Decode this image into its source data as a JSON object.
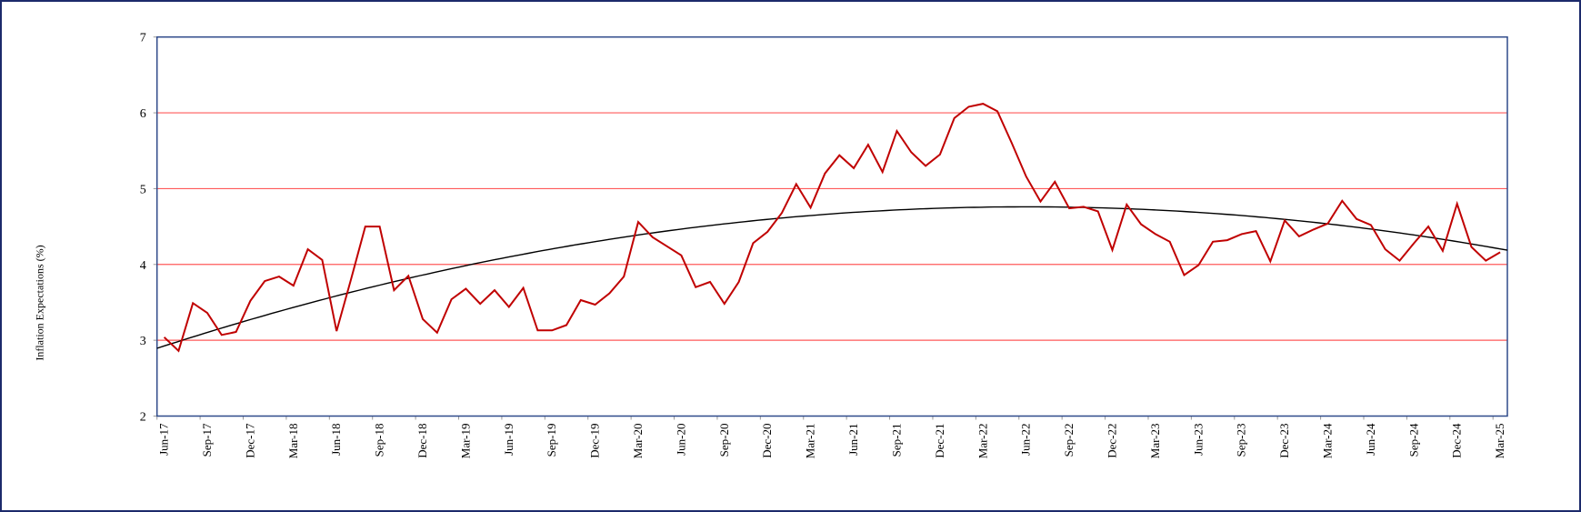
{
  "chart_data": {
    "type": "line",
    "title": "",
    "xlabel": "",
    "ylabel": "Inflation  Expectations (%)",
    "ylim": [
      2,
      7
    ],
    "y_ticks": [
      "2",
      "3",
      "4",
      "5",
      "6",
      "7"
    ],
    "grid": "horizontal",
    "frequency": "monthly",
    "x_tick_labels": [
      "Jun-17",
      "Sep-17",
      "Dec-17",
      "Mar-18",
      "Jun-18",
      "Sep-18",
      "Dec-18",
      "Mar-19",
      "Jun-19",
      "Sep-19",
      "Dec-19",
      "Mar-20",
      "Jun-20",
      "Sep-20",
      "Dec-20",
      "Mar-21",
      "Jun-21",
      "Sep-21",
      "Dec-21",
      "Mar-22",
      "Jun-22",
      "Sep-22",
      "Dec-22",
      "Mar-23",
      "Jun-23",
      "Sep-23",
      "Dec-23",
      "Mar-24",
      "Jun-24",
      "Sep-24",
      "Dec-24",
      "Mar-25"
    ],
    "series": [
      {
        "name": "Inflation Expectations",
        "color": "#c00000",
        "values": [
          3.04,
          2.86,
          3.49,
          3.36,
          3.07,
          3.11,
          3.52,
          3.78,
          3.84,
          3.72,
          4.2,
          4.06,
          3.12,
          3.8,
          4.5,
          4.5,
          3.66,
          3.85,
          3.28,
          3.1,
          3.54,
          3.68,
          3.48,
          3.66,
          3.44,
          3.69,
          3.13,
          3.13,
          3.2,
          3.53,
          3.47,
          3.62,
          3.84,
          4.56,
          4.36,
          4.24,
          4.12,
          3.7,
          3.77,
          3.48,
          3.77,
          4.28,
          4.43,
          4.68,
          5.06,
          4.75,
          5.2,
          5.44,
          5.27,
          5.58,
          5.22,
          5.76,
          5.48,
          5.3,
          5.45,
          5.93,
          6.08,
          6.12,
          6.02,
          5.6,
          5.16,
          4.83,
          5.09,
          4.74,
          4.76,
          4.7,
          4.19,
          4.79,
          4.53,
          4.4,
          4.3,
          3.86,
          3.99,
          4.3,
          4.32,
          4.4,
          4.44,
          4.04,
          4.58,
          4.37,
          4.46,
          4.54,
          4.84,
          4.6,
          4.52,
          4.2,
          4.05,
          4.28,
          4.5,
          4.18,
          4.8,
          4.23,
          4.05,
          4.16
        ]
      }
    ],
    "trendline": {
      "type": "polynomial-2",
      "color": "#000000",
      "vertex_index": 60,
      "vertex_value": 4.76,
      "a": -0.00051
    },
    "gridline_color": "#ff5a5a",
    "axis_color": "#2f4a8a"
  }
}
